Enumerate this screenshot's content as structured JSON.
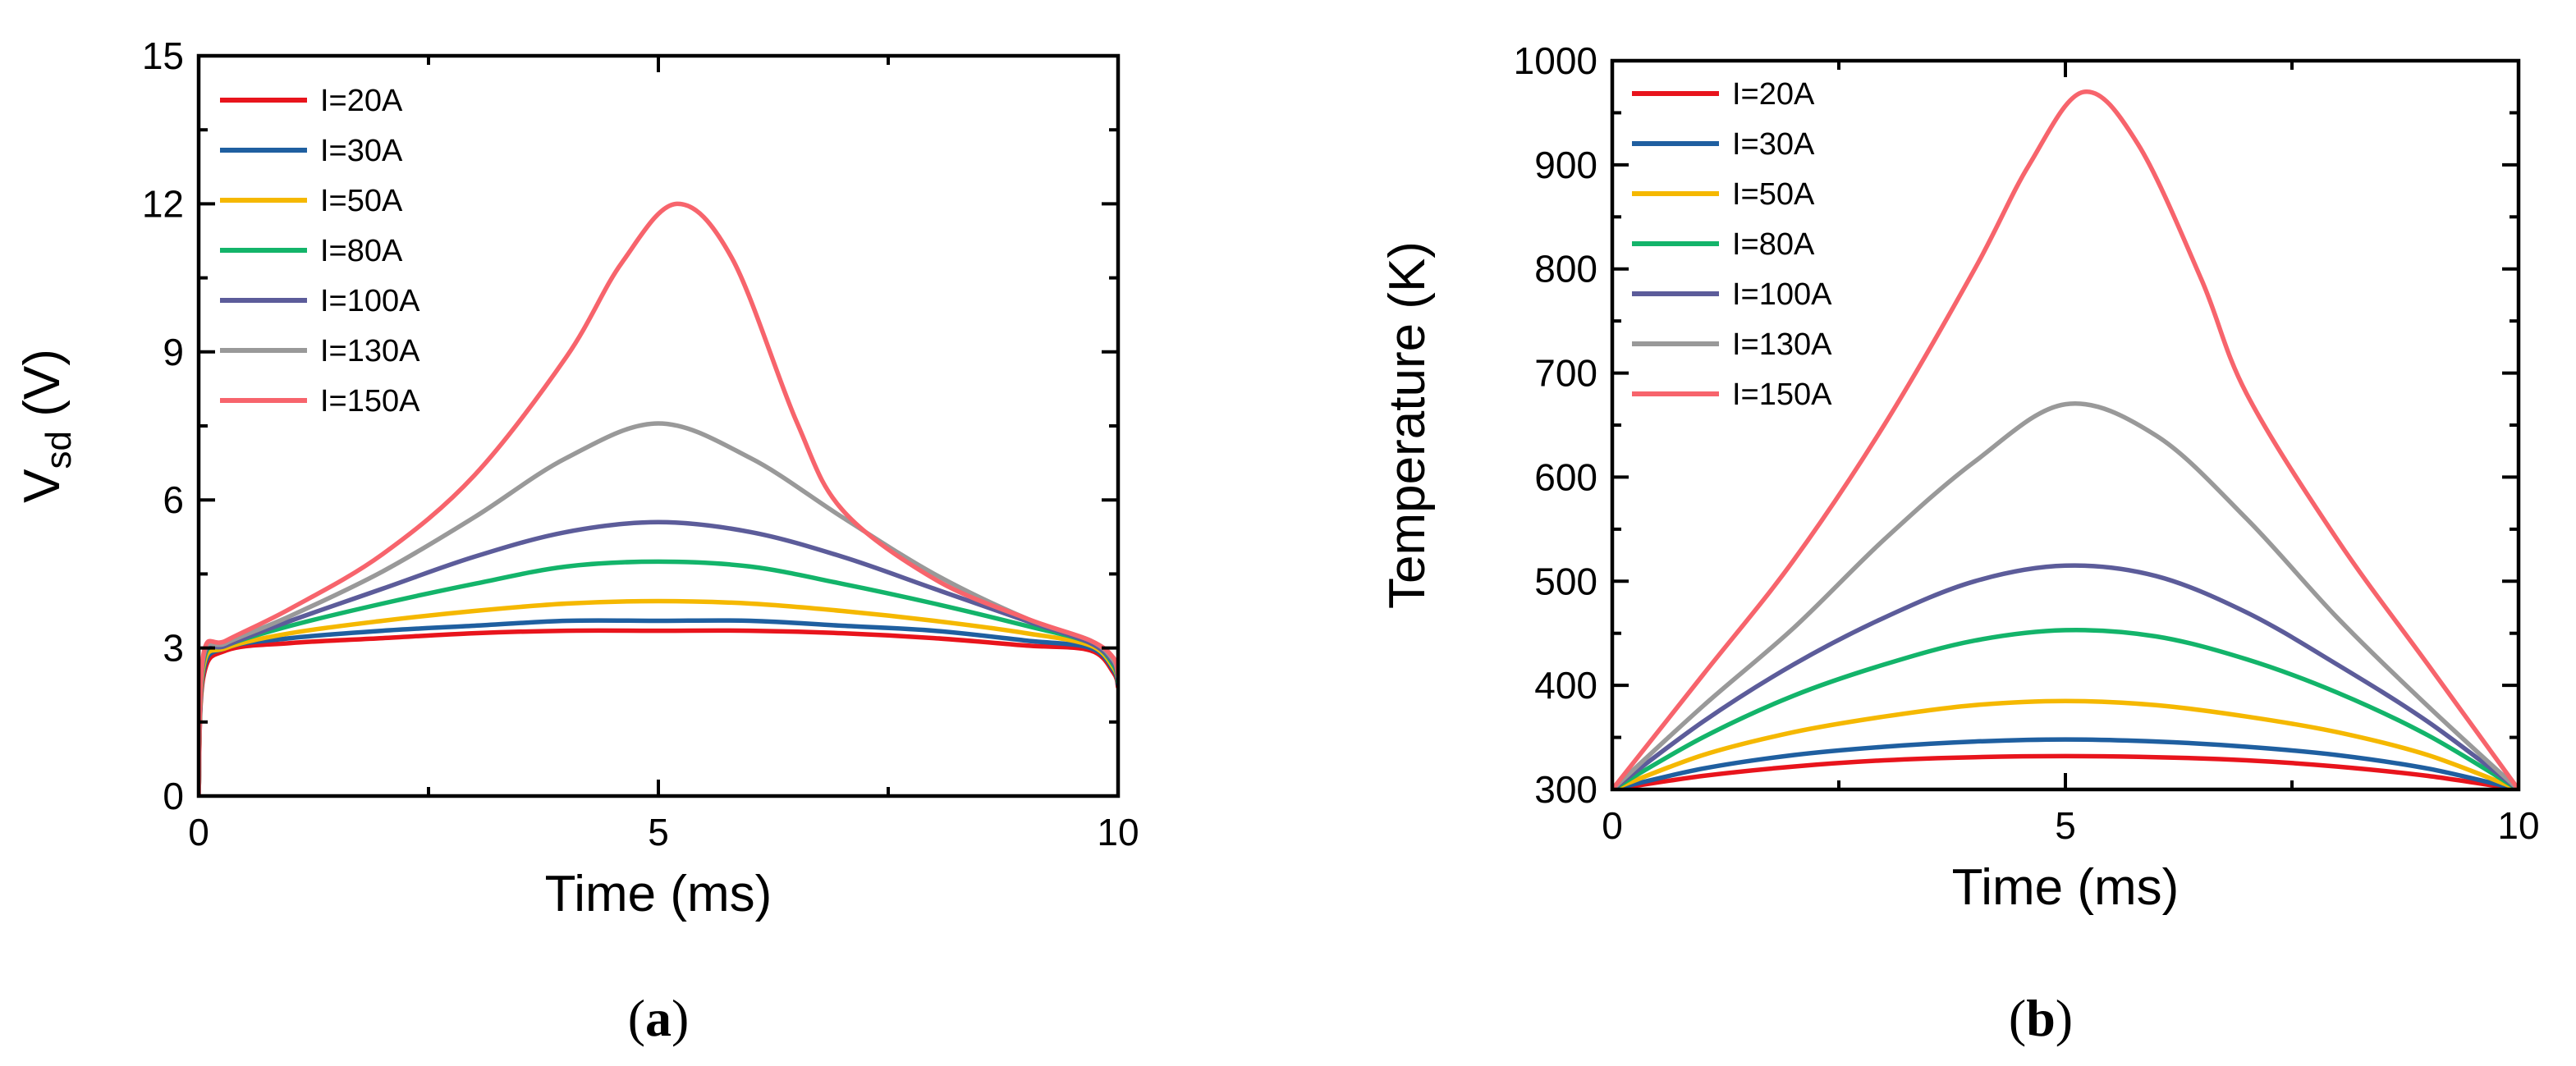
{
  "colors": {
    "I=20A": "#e8141c",
    "I=30A": "#1f5fa0",
    "I=50A": "#f5b800",
    "I=80A": "#13b46a",
    "I=100A": "#5c5c9a",
    "I=130A": "#999999",
    "I=150A": "#f7646c"
  },
  "chart_data": [
    {
      "type": "line",
      "panel": "a",
      "caption_open": "(",
      "caption_letter": "a",
      "caption_close": ")",
      "xlabel": "Time (ms)",
      "ylabel_main": "V",
      "ylabel_sub": "sd",
      "ylabel_unit": " (V)",
      "xlim": [
        0,
        10
      ],
      "ylim": [
        0,
        15
      ],
      "xticks": [
        0,
        5,
        10
      ],
      "yticks": [
        0,
        3,
        6,
        9,
        12,
        15
      ],
      "legend_position": "top-left",
      "series": [
        {
          "name": "I=20A",
          "x": [
            0,
            0.05,
            0.3,
            1,
            2,
            3,
            4,
            5,
            6,
            7,
            8,
            9,
            9.7,
            9.95,
            10
          ],
          "values": [
            0,
            2.4,
            2.95,
            3.1,
            3.2,
            3.3,
            3.35,
            3.35,
            3.35,
            3.3,
            3.2,
            3.05,
            2.95,
            2.5,
            2.2
          ]
        },
        {
          "name": "I=30A",
          "x": [
            0,
            0.05,
            0.3,
            1,
            2,
            3,
            4,
            5,
            6,
            7,
            8,
            9,
            9.7,
            9.95,
            10
          ],
          "values": [
            0,
            2.5,
            3.0,
            3.2,
            3.35,
            3.45,
            3.55,
            3.55,
            3.55,
            3.45,
            3.35,
            3.15,
            3.0,
            2.55,
            2.25
          ]
        },
        {
          "name": "I=50A",
          "x": [
            0,
            0.05,
            0.3,
            1,
            2,
            3,
            4,
            5,
            6,
            7,
            8,
            9,
            9.7,
            9.95,
            10
          ],
          "values": [
            0,
            2.6,
            3.0,
            3.3,
            3.55,
            3.75,
            3.9,
            3.95,
            3.9,
            3.75,
            3.55,
            3.3,
            3.05,
            2.6,
            2.3
          ]
        },
        {
          "name": "I=80A",
          "x": [
            0,
            0.05,
            0.3,
            1,
            2,
            3,
            4,
            5,
            6,
            7,
            8,
            9,
            9.7,
            9.95,
            10
          ],
          "values": [
            0,
            2.7,
            3.05,
            3.45,
            3.9,
            4.3,
            4.65,
            4.75,
            4.65,
            4.3,
            3.9,
            3.45,
            3.1,
            2.65,
            2.3
          ]
        },
        {
          "name": "I=100A",
          "x": [
            0,
            0.05,
            0.3,
            1,
            2,
            3,
            4,
            5,
            6,
            7,
            8,
            9,
            9.7,
            9.95,
            10
          ],
          "values": [
            0,
            2.75,
            3.05,
            3.55,
            4.2,
            4.85,
            5.35,
            5.55,
            5.35,
            4.85,
            4.2,
            3.55,
            3.1,
            2.7,
            2.35
          ]
        },
        {
          "name": "I=130A",
          "x": [
            0,
            0.05,
            0.3,
            1,
            2,
            3,
            4,
            5,
            6,
            7,
            8,
            9,
            9.7,
            9.95,
            10
          ],
          "values": [
            0,
            2.8,
            3.1,
            3.65,
            4.55,
            5.65,
            6.85,
            7.55,
            6.85,
            5.65,
            4.5,
            3.6,
            3.15,
            2.75,
            2.4
          ]
        },
        {
          "name": "I=150A",
          "x": [
            0,
            0.05,
            0.3,
            1,
            2,
            3,
            4,
            4.6,
            5.2,
            5.8,
            6.5,
            7,
            8,
            9,
            9.7,
            9.95,
            10
          ],
          "values": [
            0,
            2.85,
            3.15,
            3.8,
            4.9,
            6.5,
            8.9,
            10.8,
            12.0,
            10.9,
            7.6,
            5.8,
            4.4,
            3.6,
            3.15,
            2.8,
            2.45
          ]
        }
      ]
    },
    {
      "type": "line",
      "panel": "b",
      "caption_open": "(",
      "caption_letter": "b",
      "caption_close": ")",
      "xlabel": "Time (ms)",
      "ylabel": "Temperature (K)",
      "xlim": [
        0,
        10
      ],
      "ylim": [
        300,
        1000
      ],
      "xticks": [
        0,
        5,
        10
      ],
      "yticks": [
        300,
        400,
        500,
        600,
        700,
        800,
        900,
        1000
      ],
      "legend_position": "top-left",
      "series": [
        {
          "name": "I=20A",
          "x": [
            0,
            1,
            2,
            3,
            4,
            5,
            6,
            7,
            8,
            9,
            10
          ],
          "values": [
            300,
            313,
            322,
            328,
            331,
            332,
            331,
            328,
            322,
            313,
            300
          ]
        },
        {
          "name": "I=30A",
          "x": [
            0,
            1,
            2,
            3,
            4,
            5,
            6,
            7,
            8,
            9,
            10
          ],
          "values": [
            300,
            320,
            333,
            341,
            346,
            348,
            346,
            341,
            333,
            320,
            300
          ]
        },
        {
          "name": "I=50A",
          "x": [
            0,
            1,
            2,
            3,
            4,
            5,
            6,
            7,
            8,
            9,
            10
          ],
          "values": [
            300,
            333,
            355,
            370,
            381,
            385,
            381,
            370,
            355,
            333,
            300
          ]
        },
        {
          "name": "I=80A",
          "x": [
            0,
            1,
            2,
            3,
            4,
            5,
            6,
            7,
            8,
            9,
            10
          ],
          "values": [
            300,
            350,
            390,
            420,
            443,
            453,
            447,
            425,
            393,
            352,
            300
          ]
        },
        {
          "name": "I=100A",
          "x": [
            0,
            1,
            2,
            3,
            4,
            5,
            6,
            7,
            8,
            9,
            10
          ],
          "values": [
            300,
            365,
            420,
            465,
            500,
            515,
            505,
            470,
            420,
            365,
            300
          ]
        },
        {
          "name": "I=130A",
          "x": [
            0,
            1,
            2,
            3,
            4,
            5,
            6,
            7,
            8,
            9,
            10
          ],
          "values": [
            300,
            380,
            455,
            540,
            615,
            670,
            640,
            560,
            465,
            380,
            300
          ]
        },
        {
          "name": "I=150A",
          "x": [
            0,
            1,
            2,
            3,
            4,
            4.6,
            5.2,
            5.8,
            6.5,
            7,
            8,
            9,
            10
          ],
          "values": [
            300,
            410,
            520,
            650,
            800,
            900,
            970,
            920,
            790,
            680,
            540,
            420,
            300
          ]
        }
      ]
    }
  ]
}
